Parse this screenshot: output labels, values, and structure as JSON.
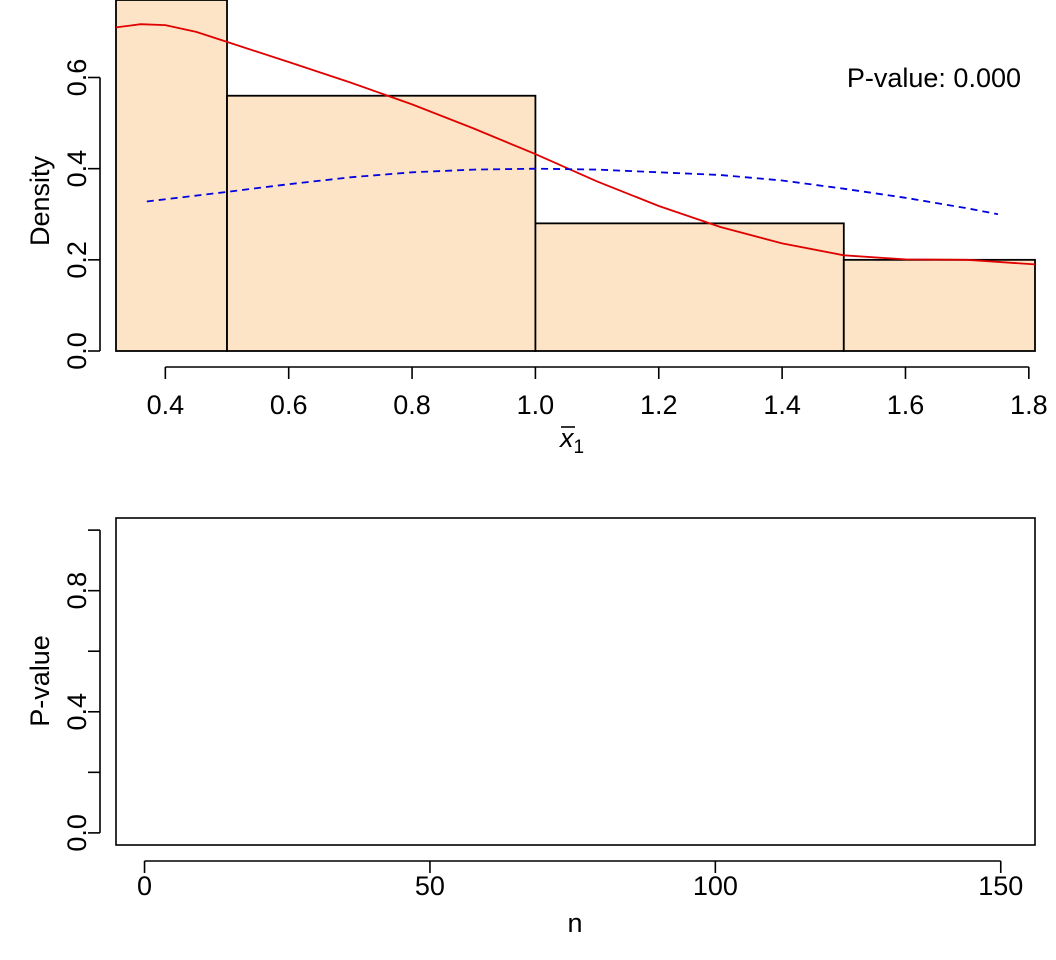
{
  "chart_data": [
    {
      "type": "bar",
      "subtype": "histogram",
      "xlabel_base": "x",
      "xlabel_sub": "1",
      "ylabel": "Density",
      "xlim": [
        0.32,
        1.81
      ],
      "ylim": [
        0,
        0.77
      ],
      "xticks": [
        "0.4",
        "0.6",
        "0.8",
        "1.0",
        "1.2",
        "1.4",
        "1.6",
        "1.8"
      ],
      "yticks": [
        "0.0",
        "0.2",
        "0.4",
        "0.6"
      ],
      "annotation": "P-value: 0.000",
      "fill_color": "#FDE4C6",
      "bins": [
        {
          "x0": 0.32,
          "x1": 0.5,
          "density": 0.77
        },
        {
          "x0": 0.5,
          "x1": 1.0,
          "density": 0.56
        },
        {
          "x0": 1.0,
          "x1": 1.5,
          "density": 0.28
        },
        {
          "x0": 1.5,
          "x1": 1.81,
          "density": 0.2
        }
      ],
      "series": [
        {
          "style": "solid",
          "color": "#E00000",
          "points": [
            [
              0.32,
              0.71
            ],
            [
              0.36,
              0.717
            ],
            [
              0.4,
              0.715
            ],
            [
              0.45,
              0.7
            ],
            [
              0.5,
              0.678
            ],
            [
              0.6,
              0.634
            ],
            [
              0.7,
              0.589
            ],
            [
              0.8,
              0.541
            ],
            [
              0.9,
              0.488
            ],
            [
              1.0,
              0.432
            ],
            [
              1.1,
              0.372
            ],
            [
              1.2,
              0.318
            ],
            [
              1.3,
              0.272
            ],
            [
              1.4,
              0.236
            ],
            [
              1.5,
              0.21
            ],
            [
              1.6,
              0.201
            ],
            [
              1.7,
              0.2
            ],
            [
              1.81,
              0.19
            ]
          ]
        },
        {
          "style": "dashed",
          "color": "#0000E0",
          "points": [
            [
              0.37,
              0.328
            ],
            [
              0.5,
              0.349
            ],
            [
              0.6,
              0.366
            ],
            [
              0.7,
              0.381
            ],
            [
              0.8,
              0.392
            ],
            [
              0.9,
              0.398
            ],
            [
              1.0,
              0.4
            ],
            [
              1.1,
              0.398
            ],
            [
              1.2,
              0.392
            ],
            [
              1.3,
              0.386
            ],
            [
              1.4,
              0.374
            ],
            [
              1.5,
              0.356
            ],
            [
              1.6,
              0.336
            ],
            [
              1.7,
              0.313
            ],
            [
              1.75,
              0.3
            ]
          ]
        }
      ]
    },
    {
      "type": "scatter",
      "xlabel": "n",
      "ylabel": "P-value",
      "xlim": [
        -5,
        156
      ],
      "ylim": [
        -0.04,
        1.04
      ],
      "xticks": [
        "0",
        "50",
        "100",
        "150"
      ],
      "yticks": [
        "0.0",
        "0.4",
        "0.8"
      ],
      "minor_yticks": [
        "0.2",
        "0.6",
        "1.0"
      ],
      "points": []
    }
  ]
}
